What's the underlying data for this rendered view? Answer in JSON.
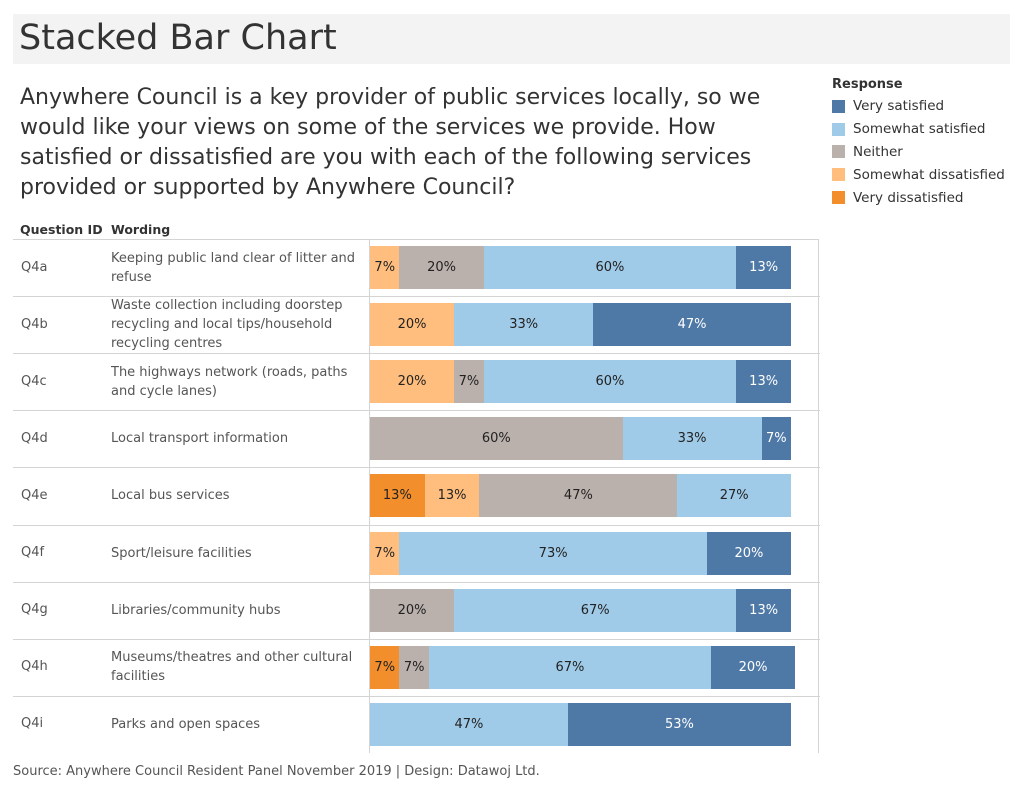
{
  "title": "Stacked Bar Chart",
  "question_text": "Anywhere Council is a key provider of public services locally, so we would like your views on some of the services we provide. How satisfied or dissatisfied are you with each of the following services provided or supported by Anywhere Council?",
  "legend": {
    "title": "Response",
    "items": [
      {
        "label": "Very satisfied",
        "color": "#4e79a7"
      },
      {
        "label": "Somewhat satisfied",
        "color": "#a0cbe8"
      },
      {
        "label": "Neither",
        "color": "#bab0ac"
      },
      {
        "label": "Somewhat dissatisfied",
        "color": "#ffbe7d"
      },
      {
        "label": "Very dissatisfied",
        "color": "#f28e2b"
      }
    ]
  },
  "columns": {
    "id": "Question ID",
    "wording": "Wording"
  },
  "source": "Source: Anywhere Council Resident Panel November 2019 | Design: Datawoj Ltd.",
  "chart_data": {
    "type": "bar",
    "orientation": "horizontal",
    "stacked": true,
    "xlim": [
      0,
      100
    ],
    "legend_position": "top-right",
    "categories": [
      "Q4a",
      "Q4b",
      "Q4c",
      "Q4d",
      "Q4e",
      "Q4f",
      "Q4g",
      "Q4h",
      "Q4i"
    ],
    "wordings": [
      "Keeping public land clear of litter and refuse",
      "Waste collection including doorstep recycling and local tips/household recycling centres",
      "The highways network (roads, paths and cycle lanes)",
      "Local transport information",
      "Local bus services",
      "Sport/leisure facilities",
      "Libraries/community hubs",
      "Museums/theatres and other cultural facilities",
      "Parks and open spaces"
    ],
    "series": [
      {
        "name": "Very dissatisfied",
        "color": "#f28e2b",
        "text_color": "#222222",
        "values": [
          0,
          0,
          0,
          0,
          13,
          0,
          0,
          7,
          0
        ]
      },
      {
        "name": "Somewhat dissatisfied",
        "color": "#ffbe7d",
        "text_color": "#222222",
        "values": [
          7,
          20,
          20,
          0,
          13,
          7,
          0,
          0,
          0
        ]
      },
      {
        "name": "Neither",
        "color": "#bab0ac",
        "text_color": "#222222",
        "values": [
          20,
          0,
          7,
          60,
          47,
          0,
          20,
          7,
          0
        ]
      },
      {
        "name": "Somewhat satisfied",
        "color": "#a0cbe8",
        "text_color": "#222222",
        "values": [
          60,
          33,
          60,
          33,
          27,
          73,
          67,
          67,
          47
        ]
      },
      {
        "name": "Very satisfied",
        "color": "#4e79a7",
        "text_color": "#ffffff",
        "values": [
          13,
          47,
          13,
          7,
          0,
          20,
          13,
          20,
          53
        ]
      }
    ]
  }
}
